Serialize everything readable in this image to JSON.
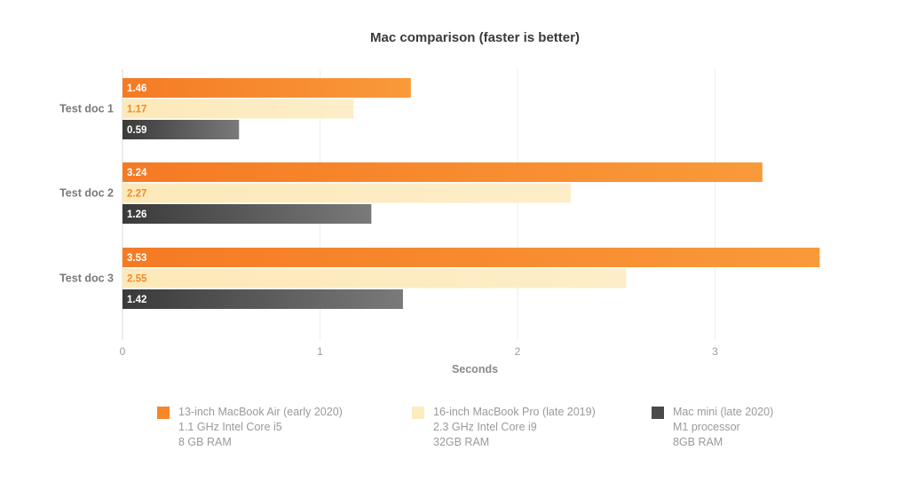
{
  "chart_data": {
    "type": "bar",
    "orientation": "horizontal",
    "title": "Mac comparison (faster is better)",
    "xlabel": "Seconds",
    "ylabel": "",
    "xlim": [
      0,
      3.6
    ],
    "x_ticks": [
      0,
      1,
      2,
      3
    ],
    "grid": "vertical",
    "categories": [
      "Test doc 1",
      "Test doc 2",
      "Test doc 3"
    ],
    "series": [
      {
        "name": "13-inch MacBook Air (early 2020)",
        "values": [
          1.46,
          3.24,
          3.53
        ],
        "color": "#f7862a",
        "label_color": "#ffffff"
      },
      {
        "name": "16-inch MacBook Pro (late 2019)",
        "values": [
          1.17,
          2.27,
          2.55
        ],
        "color": "#fdecc0",
        "label_color": "#f08a2a"
      },
      {
        "name": "Mac mini (late 2020)",
        "values": [
          0.59,
          1.26,
          1.42
        ],
        "color": "#4a4a4a",
        "label_color": "#ffffff"
      }
    ],
    "legend_position": "bottom"
  },
  "legend": [
    {
      "color": "#f7862a",
      "lines": [
        "13-inch MacBook Air (early 2020)",
        "1.1 GHz Intel Core i5",
        "8 GB RAM"
      ]
    },
    {
      "color": "#fdecc0",
      "lines": [
        "16-inch MacBook Pro (late 2019)",
        "2.3 GHz Intel Core i9",
        "32GB RAM"
      ]
    },
    {
      "color": "#4a4a4a",
      "lines": [
        "Mac mini (late 2020)",
        "M1 processor",
        "8GB RAM"
      ]
    }
  ]
}
